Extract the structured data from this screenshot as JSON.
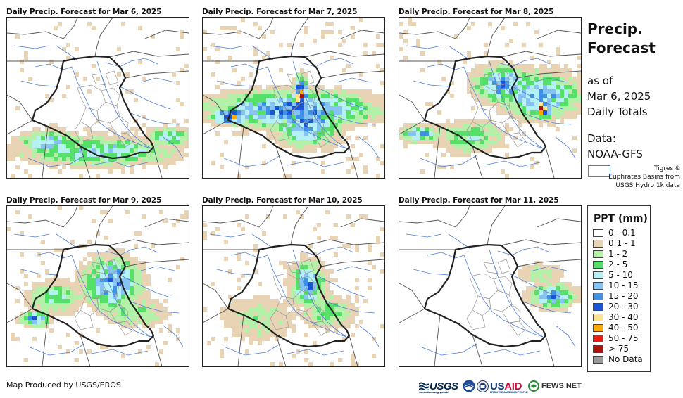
{
  "panels": [
    {
      "title": "Daily Precip. Forecast for Mar 6, 2025",
      "day": 0
    },
    {
      "title": "Daily Precip. Forecast for Mar 7, 2025",
      "day": 1
    },
    {
      "title": "Daily Precip. Forecast for Mar 8, 2025",
      "day": 2
    },
    {
      "title": "Daily Precip. Forecast for Mar 9, 2025",
      "day": 3
    },
    {
      "title": "Daily Precip. Forecast for Mar 10, 2025",
      "day": 4
    },
    {
      "title": "Daily Precip. Forecast for Mar 11, 2025",
      "day": 5
    }
  ],
  "info": {
    "title_line1": "Precip.",
    "title_line2": "Forecast",
    "as_of": "as of",
    "date": "Mar 6, 2025",
    "totals": "Daily Totals",
    "data_label": "Data:",
    "data_source": "NOAA-GFS",
    "basin_line1": "Tigres &",
    "basin_line2": "Euphrates Basins from",
    "basin_line3": "USGS Hydro 1k data"
  },
  "legend": {
    "title": "PPT (mm)",
    "classes": [
      {
        "label": "0 - 0.1",
        "color": "#ffffff"
      },
      {
        "label": "0.1 - 1",
        "color": "#e8d4b4"
      },
      {
        "label": "1 - 2",
        "color": "#b3f0a8"
      },
      {
        "label": "2 - 5",
        "color": "#55e06a"
      },
      {
        "label": "5 - 10",
        "color": "#b5f0f5"
      },
      {
        "label": "10 - 15",
        "color": "#86c2f2"
      },
      {
        "label": "15 - 20",
        "color": "#3d92e8"
      },
      {
        "label": "20 - 30",
        "color": "#1a55d6"
      },
      {
        "label": "30 - 40",
        "color": "#ffe38a"
      },
      {
        "label": "40 - 50",
        "color": "#ffaa00"
      },
      {
        "label": "50 - 75",
        "color": "#ef1c0c"
      },
      {
        "label": "> 75",
        "color": "#a8140d"
      },
      {
        "label": "No Data",
        "color": "#9a9a9a"
      }
    ]
  },
  "footer": {
    "credit": "Map Produced by USGS/EROS",
    "usgs": "USGS",
    "usgs_tagline": "science for a changing world",
    "usaid_us": "US",
    "usaid_aid": "AID",
    "usaid_tagline": "FROM THE AMERICAN PEOPLE",
    "fews": "FEWS NET"
  },
  "colors": {
    "iraq_border": "#222222",
    "country_border": "#555555",
    "rivers": "#4f7fd6",
    "provinces": "#9a9a9a"
  }
}
